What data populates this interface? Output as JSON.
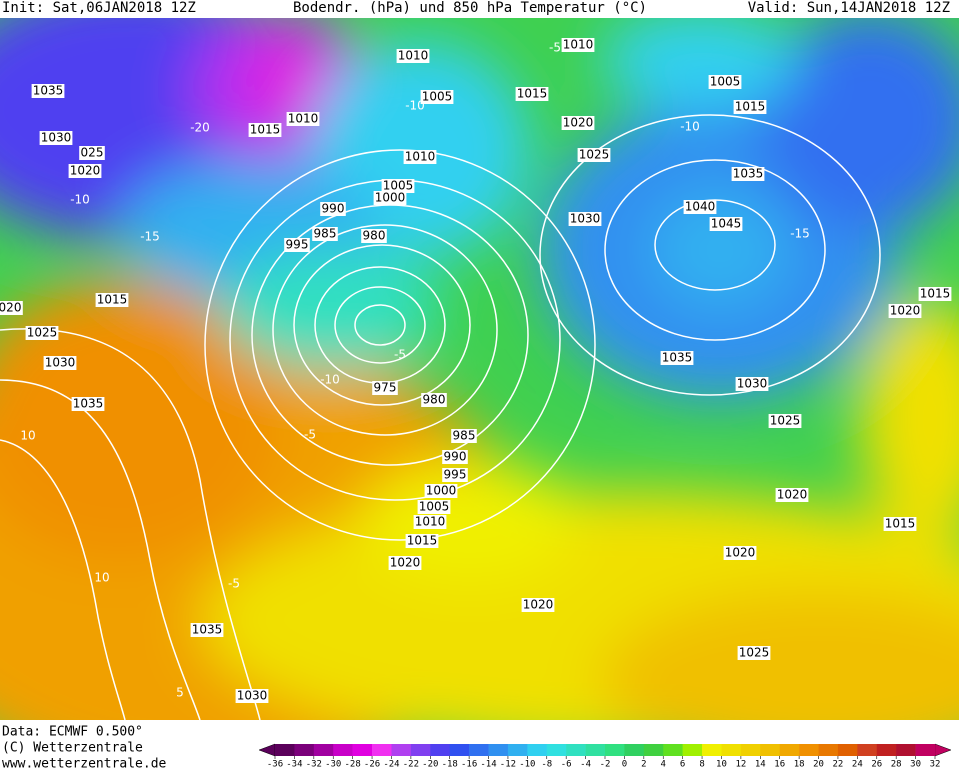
{
  "header": {
    "init": "Init: Sat,06JAN2018 12Z",
    "title": "Bodendr. (hPa) und 850 hPa Temperatur (°C)",
    "valid": "Valid: Sun,14JAN2018 12Z"
  },
  "footer": {
    "data": "Data: ECMWF  0.500°",
    "copyright": "(C) Wetterzentrale",
    "url": "www.wetterzentrale.de"
  },
  "map": {
    "labels": [
      "1035",
      "1030",
      "025",
      "1020",
      "1015",
      "1010",
      "1010",
      "1005",
      "1015",
      "1010",
      "1005",
      "1015",
      "1020",
      "1025",
      "1035",
      "1010",
      "1005",
      "1000",
      "990",
      "985",
      "995",
      "980",
      "1030",
      "1040",
      "1045",
      "1015",
      "1020",
      "1035",
      "1030",
      "1025",
      "1020",
      "1015",
      "1020",
      "1025",
      "1020",
      "1020",
      "1015",
      "1010",
      "1005",
      "1000",
      "995",
      "990",
      "985",
      "980",
      "975",
      "1025",
      "1030",
      "1035",
      "1035",
      "1030",
      "020",
      "1015",
      "-20",
      "-15",
      "-10",
      "-5",
      "-10",
      "10",
      "10",
      "-5",
      "5",
      "-5",
      "-10",
      "-15",
      "-5",
      "-10"
    ]
  },
  "colorbar": {
    "ticks": [
      -36,
      -34,
      -32,
      -30,
      -28,
      -26,
      -24,
      -22,
      -20,
      -18,
      -16,
      -14,
      -12,
      -10,
      -8,
      -6,
      -4,
      -2,
      0,
      2,
      4,
      6,
      8,
      10,
      12,
      14,
      16,
      18,
      20,
      22,
      24,
      26,
      28,
      30,
      32
    ],
    "colors": [
      "#5a005a",
      "#7a007a",
      "#a000a0",
      "#c800c8",
      "#e000e0",
      "#f030f0",
      "#b040f0",
      "#8040f0",
      "#5040f0",
      "#3050f0",
      "#3070f0",
      "#3090f0",
      "#30b0f0",
      "#30d0f0",
      "#30e0e0",
      "#30e0c0",
      "#30e0a0",
      "#30e080",
      "#30d060",
      "#40d040",
      "#60e020",
      "#a0f000",
      "#f0f000",
      "#f0e000",
      "#f0d000",
      "#f0c000",
      "#f0a800",
      "#f09000",
      "#e87800",
      "#e06000",
      "#d04020",
      "#c02020",
      "#b01030",
      "#c00060"
    ]
  }
}
